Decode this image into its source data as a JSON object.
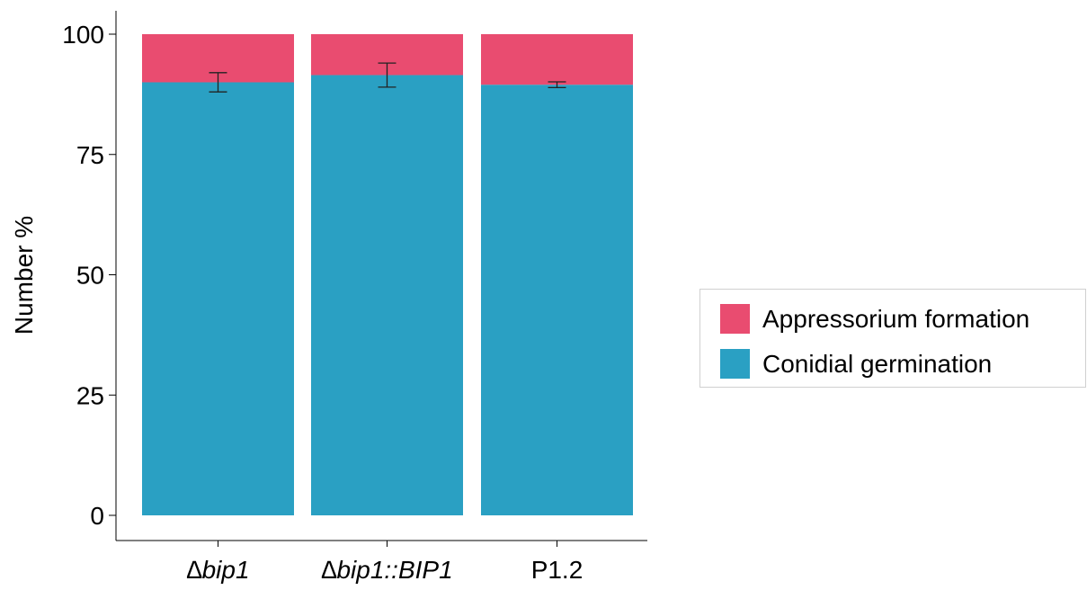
{
  "chart_data": {
    "type": "bar",
    "stacked": true,
    "title": "",
    "xlabel": "",
    "ylabel": "Number %",
    "ylim": [
      0,
      100
    ],
    "yticks": [
      0,
      25,
      50,
      75,
      100
    ],
    "grid": false,
    "legend_position": "right",
    "categories": [
      "∆bip1",
      "∆bip1::BIP1",
      "P1.2"
    ],
    "series": [
      {
        "name": "Conidial germination",
        "color": "#2aa0c3",
        "values": [
          90.0,
          91.5,
          89.5
        ],
        "error": [
          2.0,
          2.5,
          0.6
        ]
      },
      {
        "name": "Appressorium formation",
        "color": "#e94c70",
        "values": [
          10.0,
          8.5,
          10.5
        ]
      }
    ]
  }
}
